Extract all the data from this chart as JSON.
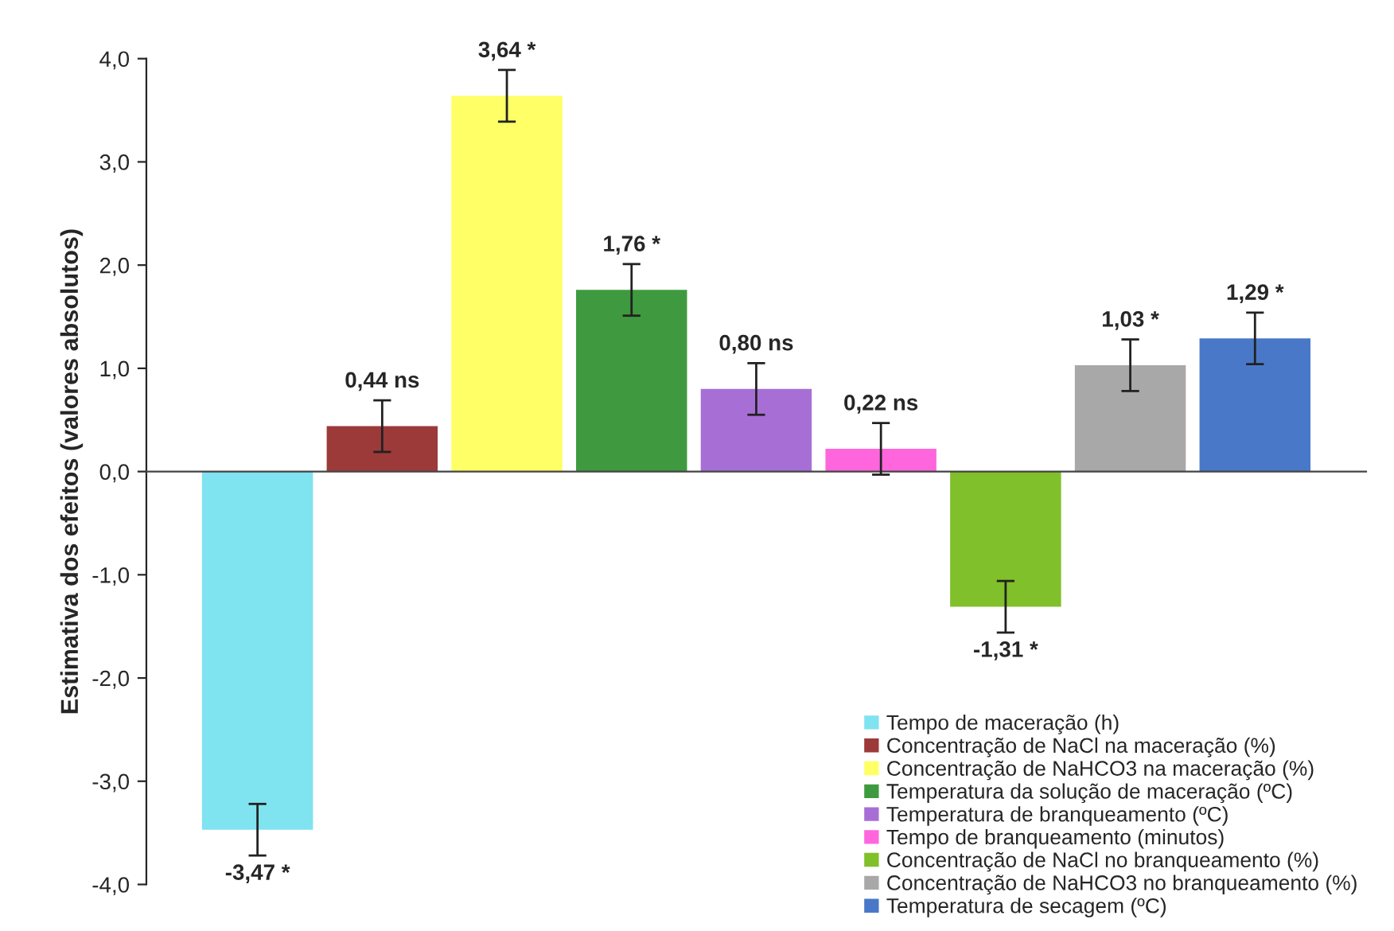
{
  "chart_data": {
    "type": "bar",
    "ylabel": "Estimativa dos efeitos (valores absolutos)",
    "categories": [
      null
    ],
    "series": [
      {
        "name": "Tempo de maceração (h)",
        "color": "#7fe3f0",
        "values": [
          -3.47
        ],
        "errors": [
          0.25
        ],
        "value_labels": [
          "-3,47 *"
        ]
      },
      {
        "name": "Concentração de NaCl na maceração (%)",
        "color": "#9c3a3a",
        "values": [
          0.44
        ],
        "errors": [
          0.25
        ],
        "value_labels": [
          "0,44 ns"
        ]
      },
      {
        "name": "Concentração de NaHCO3 na maceração (%)",
        "color": "#ffff66",
        "values": [
          3.64
        ],
        "errors": [
          0.25
        ],
        "value_labels": [
          "3,64 *"
        ]
      },
      {
        "name": "Temperatura da solução de maceração (ºC)",
        "color": "#3f9a3f",
        "values": [
          1.76
        ],
        "errors": [
          0.25
        ],
        "value_labels": [
          "1,76 *"
        ]
      },
      {
        "name": "Temperatura de branqueamento (ºC)",
        "color": "#a76fd6",
        "values": [
          0.8
        ],
        "errors": [
          0.25
        ],
        "value_labels": [
          "0,80 ns"
        ]
      },
      {
        "name": "Tempo de branqueamento (minutos)",
        "color": "#ff66dd",
        "values": [
          0.22
        ],
        "errors": [
          0.25
        ],
        "value_labels": [
          "0,22 ns"
        ]
      },
      {
        "name": "Concentração de NaCl no branqueamento (%)",
        "color": "#80c02a",
        "values": [
          -1.31
        ],
        "errors": [
          0.25
        ],
        "value_labels": [
          "-1,31 *"
        ]
      },
      {
        "name": "Concentração de NaHCO3 no branqueamento (%)",
        "color": "#a8a8a8",
        "values": [
          1.03
        ],
        "errors": [
          0.25
        ],
        "value_labels": [
          "1,03 *"
        ]
      },
      {
        "name": "Temperatura de secagem (ºC)",
        "color": "#4a78c8",
        "values": [
          1.29
        ],
        "errors": [
          0.25
        ],
        "value_labels": [
          "1,29 *"
        ]
      }
    ],
    "ylim": [
      -4.0,
      4.0
    ],
    "yticks": [
      {
        "value": -4.0,
        "label": "-4,0"
      },
      {
        "value": -3.0,
        "label": "-3,0"
      },
      {
        "value": -2.0,
        "label": "-2,0"
      },
      {
        "value": -1.0,
        "label": "-1,0"
      },
      {
        "value": 0.0,
        "label": "0,0"
      },
      {
        "value": 1.0,
        "label": "1,0"
      },
      {
        "value": 2.0,
        "label": "2,0"
      },
      {
        "value": 3.0,
        "label": "3,0"
      },
      {
        "value": 4.0,
        "label": "4,0"
      }
    ],
    "tick_labels": "y",
    "legend": "bottom right"
  }
}
